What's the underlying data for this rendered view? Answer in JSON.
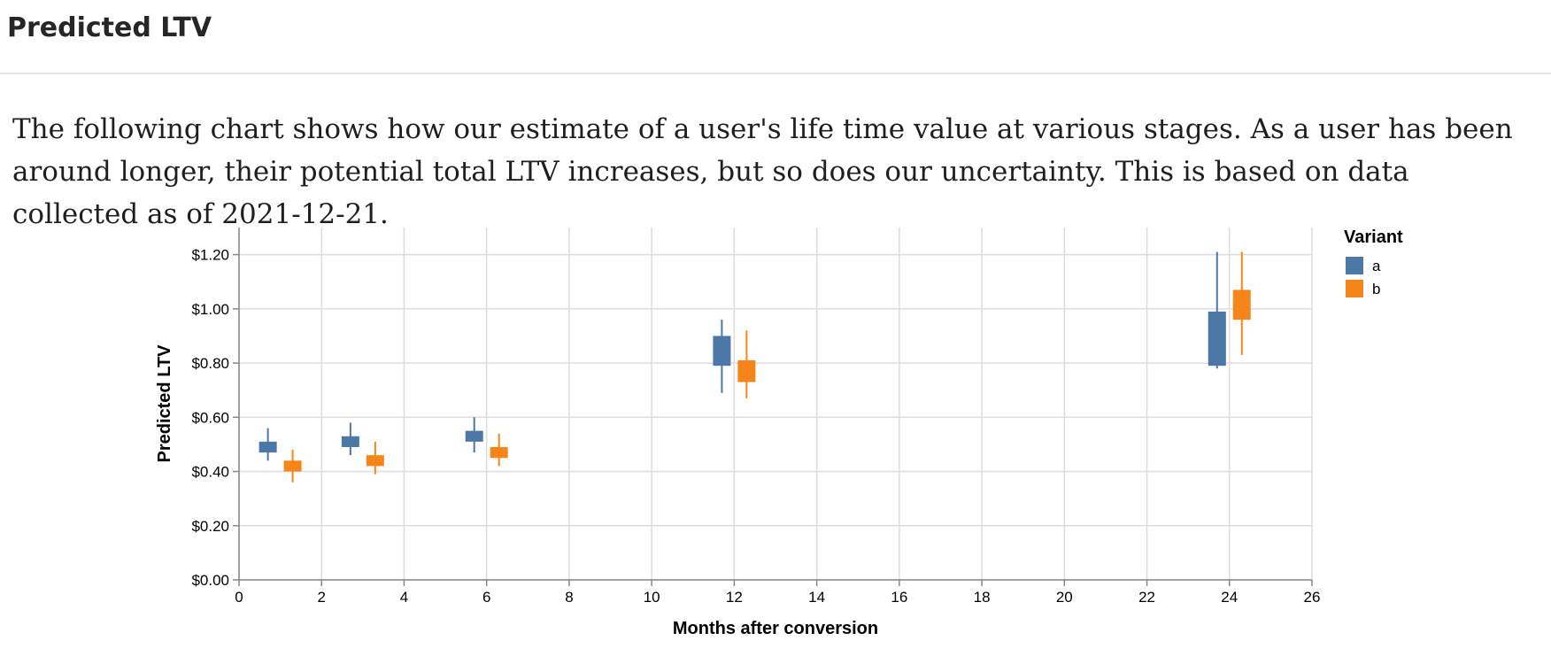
{
  "header": {
    "title": "Predicted LTV"
  },
  "description": "The following chart shows how our estimate of a user's life time value at various stages. As a user has been around longer, their potential total LTV increases, but so does our uncertainty. This is based on data collected as of 2021-12-21.",
  "chart_data": {
    "type": "box",
    "xlabel": "Months after conversion",
    "ylabel": "Predicted LTV",
    "xlim": [
      0,
      26
    ],
    "ylim": [
      0,
      1.3
    ],
    "x_ticks": [
      "0",
      "2",
      "4",
      "6",
      "8",
      "10",
      "12",
      "14",
      "16",
      "18",
      "20",
      "22",
      "24",
      "26"
    ],
    "y_ticks": [
      "$0.00",
      "$0.20",
      "$0.40",
      "$0.60",
      "$0.80",
      "$1.00",
      "$1.20"
    ],
    "grid": true,
    "legend": {
      "title": "Variant",
      "position": "top-right"
    },
    "categories": [
      1,
      3,
      6,
      12,
      24
    ],
    "series": [
      {
        "name": "a",
        "color": "#4c78a8",
        "values": [
          {
            "x": 1,
            "min": 0.44,
            "q1": 0.47,
            "q3": 0.51,
            "max": 0.56
          },
          {
            "x": 3,
            "min": 0.46,
            "q1": 0.49,
            "q3": 0.53,
            "max": 0.58
          },
          {
            "x": 6,
            "min": 0.47,
            "q1": 0.51,
            "q3": 0.55,
            "max": 0.6
          },
          {
            "x": 12,
            "min": 0.69,
            "q1": 0.79,
            "q3": 0.9,
            "max": 0.96
          },
          {
            "x": 24,
            "min": 0.78,
            "q1": 0.79,
            "q3": 0.99,
            "max": 1.21
          }
        ]
      },
      {
        "name": "b",
        "color": "#f58518",
        "values": [
          {
            "x": 1,
            "min": 0.36,
            "q1": 0.4,
            "q3": 0.44,
            "max": 0.48
          },
          {
            "x": 3,
            "min": 0.39,
            "q1": 0.42,
            "q3": 0.46,
            "max": 0.51
          },
          {
            "x": 6,
            "min": 0.42,
            "q1": 0.45,
            "q3": 0.49,
            "max": 0.54
          },
          {
            "x": 12,
            "min": 0.67,
            "q1": 0.73,
            "q3": 0.81,
            "max": 0.92
          },
          {
            "x": 24,
            "min": 0.83,
            "q1": 0.96,
            "q3": 1.07,
            "max": 1.21
          }
        ]
      }
    ]
  }
}
